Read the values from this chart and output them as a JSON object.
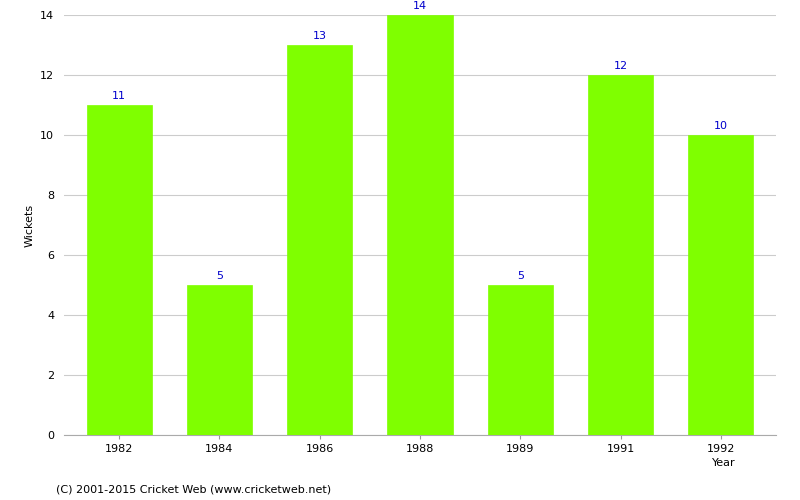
{
  "years": [
    "1982",
    "1984",
    "1986",
    "1988",
    "1989",
    "1991",
    "1992"
  ],
  "wickets": [
    11,
    5,
    13,
    14,
    5,
    12,
    10
  ],
  "bar_color": "#7fff00",
  "bar_edge_color": "#7fff00",
  "label_color": "#0000cc",
  "ylabel": "Wickets",
  "xlabel": "Year",
  "ylim": [
    0,
    14
  ],
  "yticks": [
    0,
    2,
    4,
    6,
    8,
    10,
    12,
    14
  ],
  "footer": "(C) 2001-2015 Cricket Web (www.cricketweb.net)",
  "background_color": "#ffffff",
  "grid_color": "#cccccc",
  "label_fontsize": 8,
  "axis_fontsize": 8,
  "footer_fontsize": 8
}
